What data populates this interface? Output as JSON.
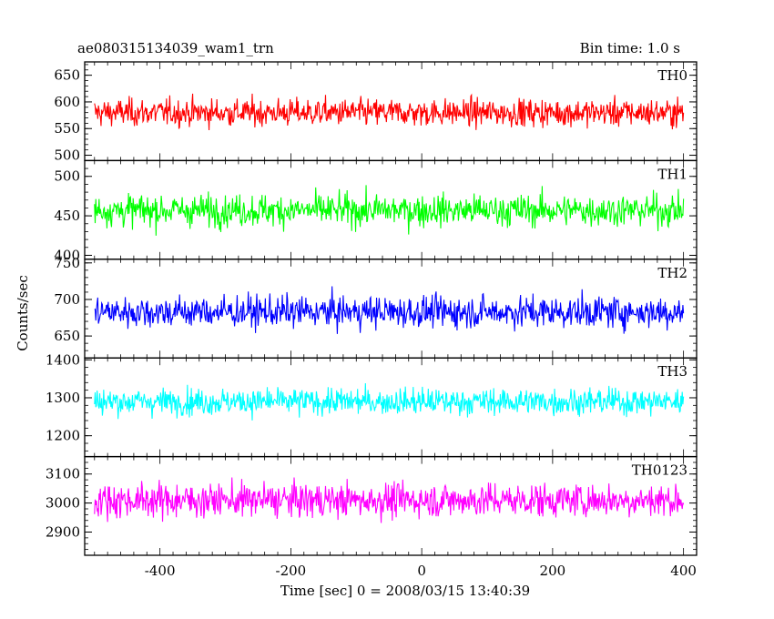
{
  "header": {
    "title": "ae080315134039_wam1_trn",
    "bin_time": "Bin time: 1.0 s"
  },
  "axes": {
    "xlabel": "Time [sec] 0 = 2008/03/15 13:40:39",
    "ylabel": "Counts/sec"
  },
  "chart_data": {
    "type": "line",
    "x": {
      "range": [
        -515,
        420
      ],
      "ticks": [
        -400,
        -200,
        0,
        200,
        400
      ],
      "data_range": [
        -500,
        400
      ],
      "bin": 1.0
    },
    "panels": [
      {
        "name": "TH0",
        "color": "#ff0000",
        "ylim": [
          490,
          675
        ],
        "yticks": [
          500,
          550,
          600,
          650
        ],
        "mean": 580,
        "spread": 33
      },
      {
        "name": "TH1",
        "color": "#00ff00",
        "ylim": [
          395,
          520
        ],
        "yticks": [
          400,
          450,
          500
        ],
        "mean": 457,
        "spread": 26
      },
      {
        "name": "TH2",
        "color": "#0000ff",
        "ylim": [
          620,
          755
        ],
        "yticks": [
          650,
          700,
          750
        ],
        "mean": 683,
        "spread": 28
      },
      {
        "name": "TH3",
        "color": "#00ffff",
        "ylim": [
          1145,
          1405
        ],
        "yticks": [
          1200,
          1300,
          1400
        ],
        "mean": 1290,
        "spread": 45
      },
      {
        "name": "TH0123",
        "color": "#ff00ff",
        "ylim": [
          2820,
          3160
        ],
        "yticks": [
          2900,
          3000,
          3100
        ],
        "mean": 3010,
        "spread": 75
      }
    ]
  }
}
